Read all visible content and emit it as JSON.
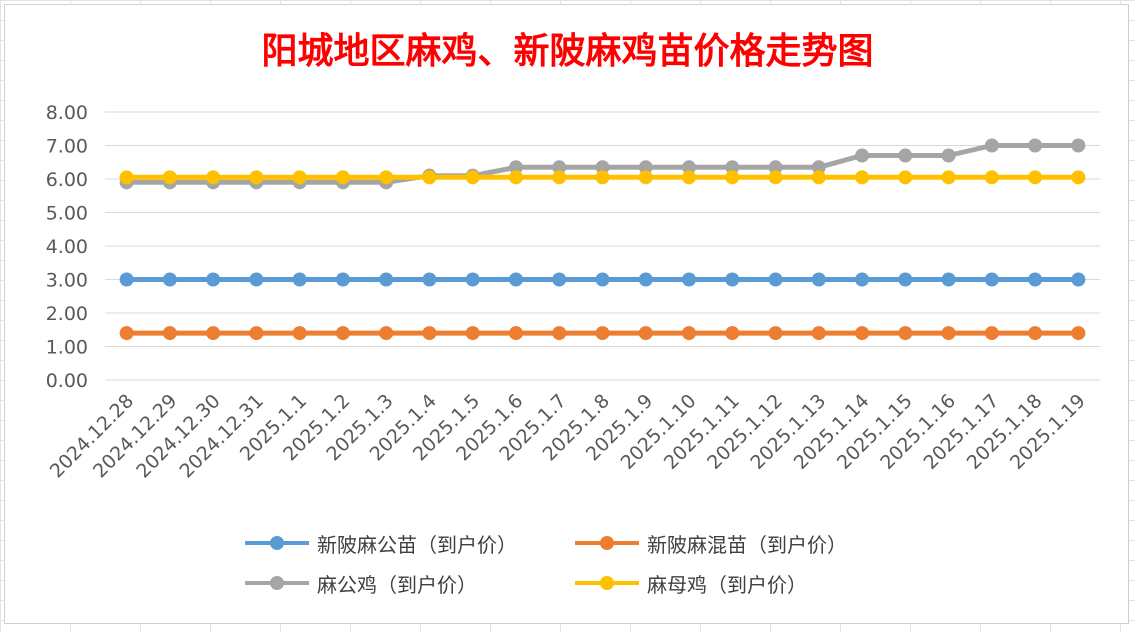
{
  "title": "阳城地区麻鸡、新陂麻鸡苗价格走势图",
  "chart_data": {
    "type": "line",
    "title": "阳城地区麻鸡、新陂麻鸡苗价格走势图",
    "categories": [
      "2024.12.28",
      "2024.12.29",
      "2024.12.30",
      "2024.12.31",
      "2025.1.1",
      "2025.1.2",
      "2025.1.3",
      "2025.1.4",
      "2025.1.5",
      "2025.1.6",
      "2025.1.7",
      "2025.1.8",
      "2025.1.9",
      "2025.1.10",
      "2025.1.11",
      "2025.1.12",
      "2025.1.13",
      "2025.1.14",
      "2025.1.15",
      "2025.1.16",
      "2025.1.17",
      "2025.1.18",
      "2025.1.19"
    ],
    "yticks": [
      "0.00",
      "1.00",
      "2.00",
      "3.00",
      "4.00",
      "5.00",
      "6.00",
      "7.00",
      "8.00"
    ],
    "ylim": [
      0,
      8
    ],
    "grid": true,
    "legend_position": "bottom",
    "series": [
      {
        "name": "新陂麻公苗（到户价）",
        "color": "#5b9bd5",
        "values": [
          3,
          3,
          3,
          3,
          3,
          3,
          3,
          3,
          3,
          3,
          3,
          3,
          3,
          3,
          3,
          3,
          3,
          3,
          3,
          3,
          3,
          3,
          3
        ]
      },
      {
        "name": "新陂麻混苗（到户价）",
        "color": "#ed7d31",
        "values": [
          1.4,
          1.4,
          1.4,
          1.4,
          1.4,
          1.4,
          1.4,
          1.4,
          1.4,
          1.4,
          1.4,
          1.4,
          1.4,
          1.4,
          1.4,
          1.4,
          1.4,
          1.4,
          1.4,
          1.4,
          1.4,
          1.4,
          1.4
        ]
      },
      {
        "name": "麻公鸡（到户价）",
        "color": "#a5a5a5",
        "values": [
          5.9,
          5.9,
          5.9,
          5.9,
          5.9,
          5.9,
          5.9,
          6.1,
          6.1,
          6.35,
          6.35,
          6.35,
          6.35,
          6.35,
          6.35,
          6.35,
          6.35,
          6.7,
          6.7,
          6.7,
          7,
          7,
          7
        ]
      },
      {
        "name": "麻母鸡（到户价）",
        "color": "#ffc000",
        "values": [
          6.05,
          6.05,
          6.05,
          6.05,
          6.05,
          6.05,
          6.05,
          6.05,
          6.05,
          6.05,
          6.05,
          6.05,
          6.05,
          6.05,
          6.05,
          6.05,
          6.05,
          6.05,
          6.05,
          6.05,
          6.05,
          6.05,
          6.05
        ]
      }
    ]
  }
}
